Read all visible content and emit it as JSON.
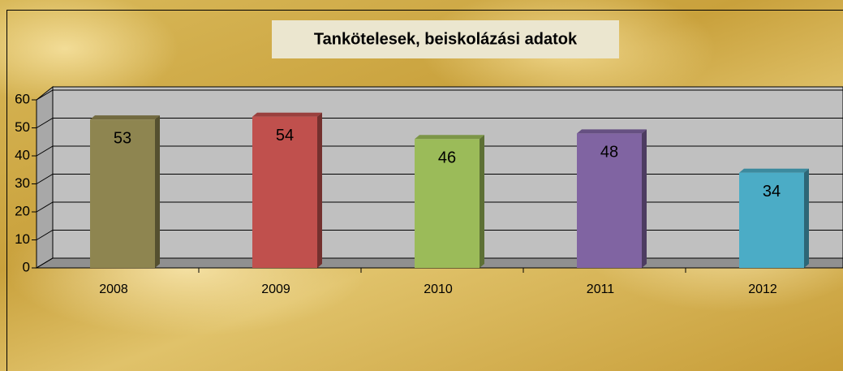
{
  "chart_data": {
    "type": "bar3d",
    "title": "Tankötelesek, beiskolázási adatok",
    "categories": [
      "2008",
      "2009",
      "2010",
      "2011",
      "2012"
    ],
    "values": [
      53,
      54,
      46,
      48,
      34
    ],
    "colors": [
      "#8e8550",
      "#c0504d",
      "#9bbb59",
      "#8064a2",
      "#4bacc6"
    ],
    "ylim": [
      0,
      60
    ],
    "yticks": [
      0,
      10,
      20,
      30,
      40,
      50,
      60
    ],
    "grid": true
  }
}
